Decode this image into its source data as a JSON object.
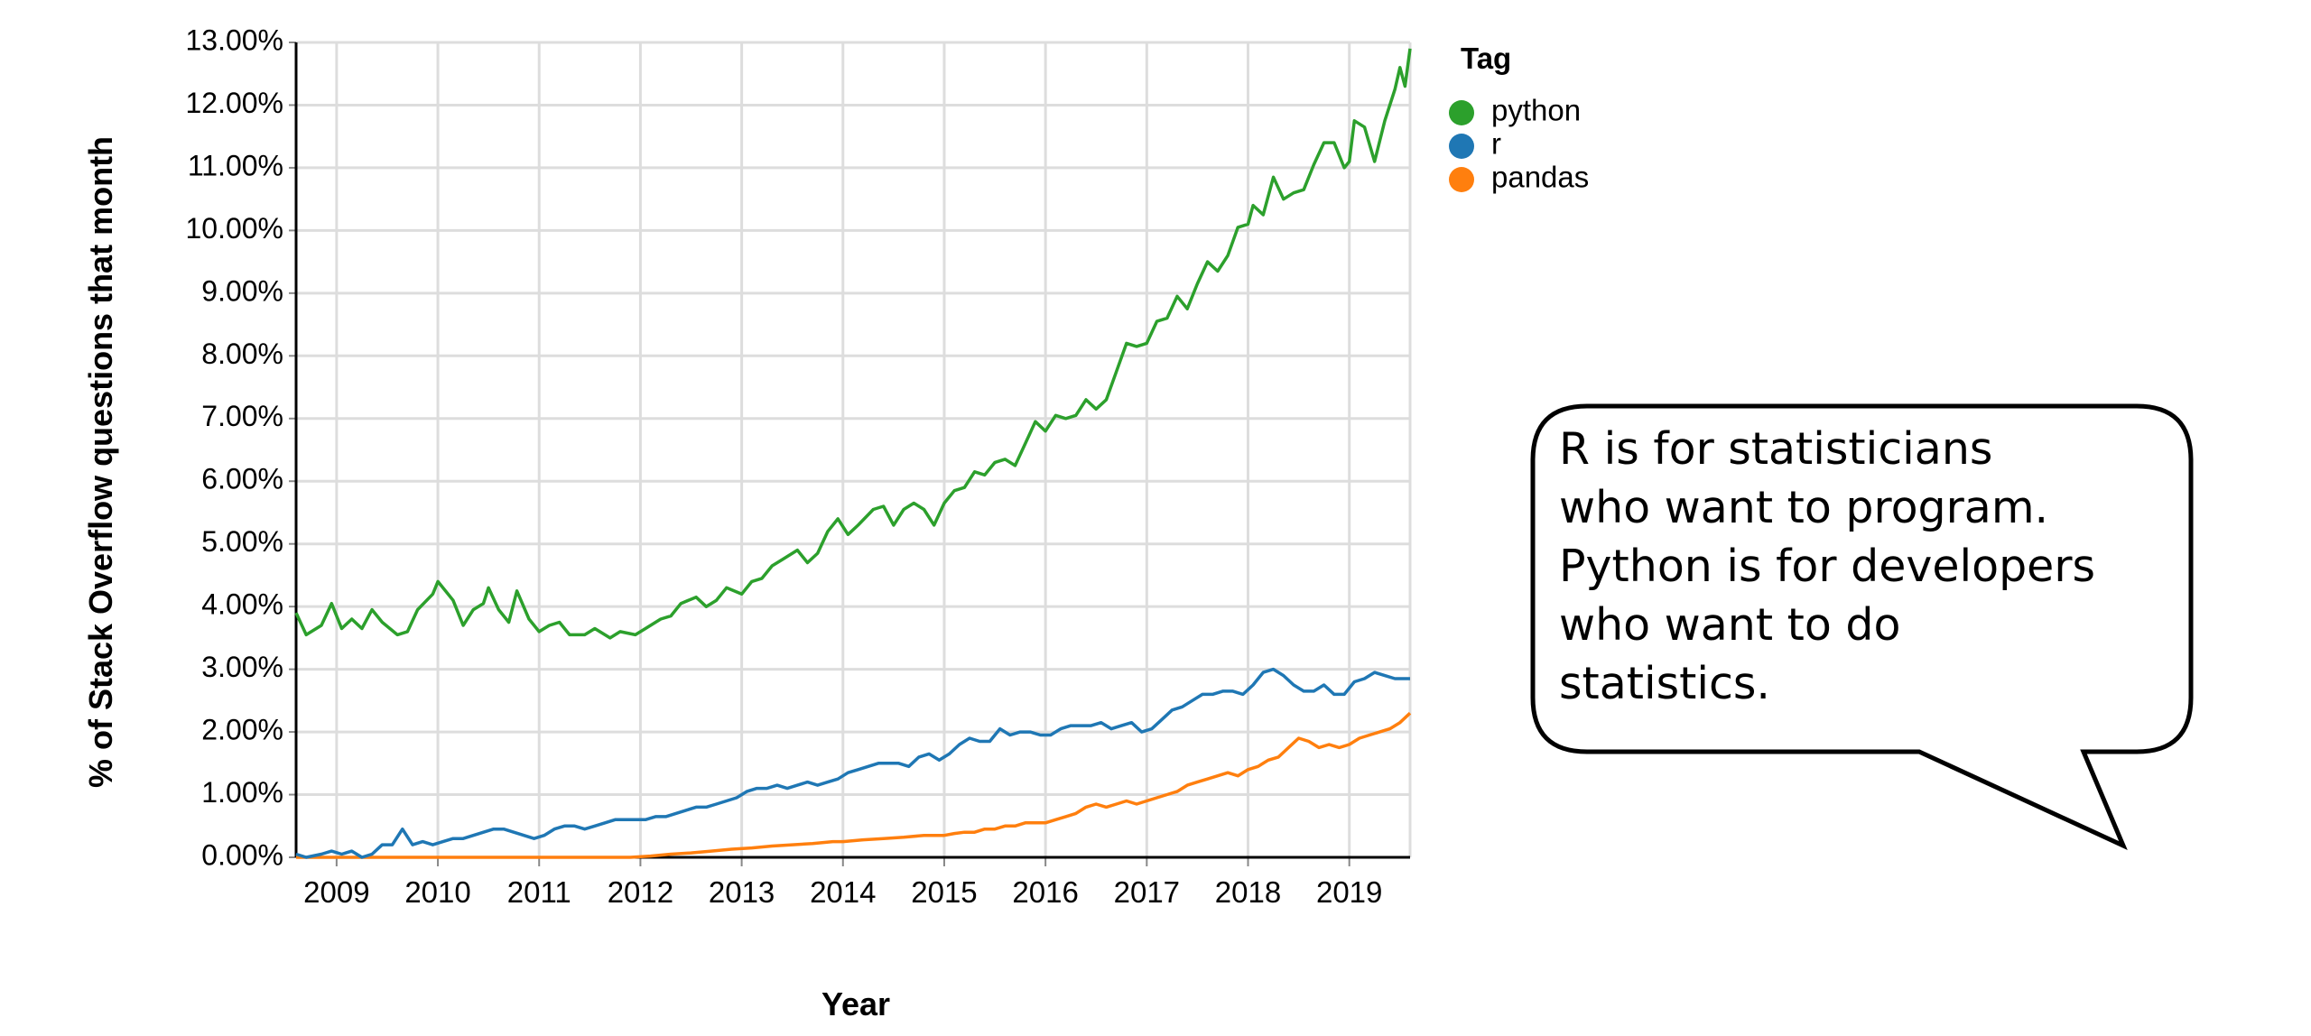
{
  "chart_data": {
    "type": "line",
    "xlabel": "Year",
    "ylabel": "% of Stack Overflow questions that month",
    "ylim": [
      0,
      13
    ],
    "xlim": [
      2008.6,
      2019.6
    ],
    "y_ticks": [
      "0.00%",
      "1.00%",
      "2.00%",
      "3.00%",
      "4.00%",
      "5.00%",
      "6.00%",
      "7.00%",
      "8.00%",
      "9.00%",
      "10.00%",
      "11.00%",
      "12.00%",
      "13.00%"
    ],
    "x_ticks": [
      "2009",
      "2010",
      "2011",
      "2012",
      "2013",
      "2014",
      "2015",
      "2016",
      "2017",
      "2018",
      "2019"
    ],
    "grid": true,
    "legend": {
      "title": "Tag",
      "position": "top-right"
    },
    "series": [
      {
        "name": "python",
        "color": "#2ca02c",
        "points": [
          [
            2008.6,
            3.9
          ],
          [
            2008.7,
            3.55
          ],
          [
            2008.85,
            3.7
          ],
          [
            2008.95,
            4.05
          ],
          [
            2009.05,
            3.65
          ],
          [
            2009.15,
            3.8
          ],
          [
            2009.25,
            3.65
          ],
          [
            2009.35,
            3.95
          ],
          [
            2009.45,
            3.75
          ],
          [
            2009.6,
            3.55
          ],
          [
            2009.7,
            3.6
          ],
          [
            2009.8,
            3.95
          ],
          [
            2009.95,
            4.2
          ],
          [
            2010.0,
            4.4
          ],
          [
            2010.15,
            4.1
          ],
          [
            2010.25,
            3.7
          ],
          [
            2010.35,
            3.95
          ],
          [
            2010.45,
            4.05
          ],
          [
            2010.5,
            4.3
          ],
          [
            2010.6,
            3.95
          ],
          [
            2010.7,
            3.75
          ],
          [
            2010.78,
            4.25
          ],
          [
            2010.9,
            3.8
          ],
          [
            2011.0,
            3.6
          ],
          [
            2011.1,
            3.7
          ],
          [
            2011.2,
            3.75
          ],
          [
            2011.3,
            3.55
          ],
          [
            2011.45,
            3.55
          ],
          [
            2011.55,
            3.65
          ],
          [
            2011.7,
            3.5
          ],
          [
            2011.8,
            3.6
          ],
          [
            2011.95,
            3.55
          ],
          [
            2012.05,
            3.65
          ],
          [
            2012.2,
            3.8
          ],
          [
            2012.3,
            3.85
          ],
          [
            2012.4,
            4.05
          ],
          [
            2012.55,
            4.15
          ],
          [
            2012.65,
            4.0
          ],
          [
            2012.75,
            4.1
          ],
          [
            2012.85,
            4.3
          ],
          [
            2013.0,
            4.2
          ],
          [
            2013.1,
            4.4
          ],
          [
            2013.2,
            4.45
          ],
          [
            2013.3,
            4.65
          ],
          [
            2013.4,
            4.75
          ],
          [
            2013.55,
            4.9
          ],
          [
            2013.65,
            4.7
          ],
          [
            2013.75,
            4.85
          ],
          [
            2013.85,
            5.2
          ],
          [
            2013.95,
            5.4
          ],
          [
            2014.05,
            5.15
          ],
          [
            2014.15,
            5.3
          ],
          [
            2014.3,
            5.55
          ],
          [
            2014.4,
            5.6
          ],
          [
            2014.5,
            5.3
          ],
          [
            2014.6,
            5.55
          ],
          [
            2014.7,
            5.65
          ],
          [
            2014.8,
            5.55
          ],
          [
            2014.9,
            5.3
          ],
          [
            2015.0,
            5.65
          ],
          [
            2015.1,
            5.85
          ],
          [
            2015.2,
            5.9
          ],
          [
            2015.3,
            6.15
          ],
          [
            2015.4,
            6.1
          ],
          [
            2015.5,
            6.3
          ],
          [
            2015.6,
            6.35
          ],
          [
            2015.7,
            6.25
          ],
          [
            2015.8,
            6.6
          ],
          [
            2015.9,
            6.95
          ],
          [
            2016.0,
            6.8
          ],
          [
            2016.1,
            7.05
          ],
          [
            2016.2,
            7.0
          ],
          [
            2016.3,
            7.05
          ],
          [
            2016.4,
            7.3
          ],
          [
            2016.5,
            7.15
          ],
          [
            2016.6,
            7.3
          ],
          [
            2016.7,
            7.75
          ],
          [
            2016.8,
            8.2
          ],
          [
            2016.9,
            8.15
          ],
          [
            2017.0,
            8.2
          ],
          [
            2017.1,
            8.55
          ],
          [
            2017.2,
            8.6
          ],
          [
            2017.3,
            8.95
          ],
          [
            2017.4,
            8.75
          ],
          [
            2017.5,
            9.15
          ],
          [
            2017.6,
            9.5
          ],
          [
            2017.7,
            9.35
          ],
          [
            2017.8,
            9.6
          ],
          [
            2017.9,
            10.05
          ],
          [
            2018.0,
            10.1
          ],
          [
            2018.05,
            10.4
          ],
          [
            2018.15,
            10.25
          ],
          [
            2018.25,
            10.85
          ],
          [
            2018.35,
            10.5
          ],
          [
            2018.45,
            10.6
          ],
          [
            2018.55,
            10.65
          ],
          [
            2018.65,
            11.05
          ],
          [
            2018.75,
            11.4
          ],
          [
            2018.85,
            11.4
          ],
          [
            2018.95,
            11.0
          ],
          [
            2019.0,
            11.1
          ],
          [
            2019.05,
            11.75
          ],
          [
            2019.15,
            11.65
          ],
          [
            2019.25,
            11.1
          ],
          [
            2019.35,
            11.75
          ],
          [
            2019.45,
            12.25
          ],
          [
            2019.5,
            12.6
          ],
          [
            2019.55,
            12.3
          ],
          [
            2019.6,
            12.9
          ]
        ]
      },
      {
        "name": "r",
        "color": "#1f77b4",
        "points": [
          [
            2008.6,
            0.05
          ],
          [
            2008.7,
            0.0
          ],
          [
            2008.85,
            0.05
          ],
          [
            2008.95,
            0.1
          ],
          [
            2009.05,
            0.05
          ],
          [
            2009.15,
            0.1
          ],
          [
            2009.25,
            0.0
          ],
          [
            2009.35,
            0.05
          ],
          [
            2009.45,
            0.2
          ],
          [
            2009.55,
            0.2
          ],
          [
            2009.65,
            0.45
          ],
          [
            2009.75,
            0.2
          ],
          [
            2009.85,
            0.25
          ],
          [
            2009.95,
            0.2
          ],
          [
            2010.05,
            0.25
          ],
          [
            2010.15,
            0.3
          ],
          [
            2010.25,
            0.3
          ],
          [
            2010.35,
            0.35
          ],
          [
            2010.45,
            0.4
          ],
          [
            2010.55,
            0.45
          ],
          [
            2010.65,
            0.45
          ],
          [
            2010.75,
            0.4
          ],
          [
            2010.85,
            0.35
          ],
          [
            2010.95,
            0.3
          ],
          [
            2011.05,
            0.35
          ],
          [
            2011.15,
            0.45
          ],
          [
            2011.25,
            0.5
          ],
          [
            2011.35,
            0.5
          ],
          [
            2011.45,
            0.45
          ],
          [
            2011.55,
            0.5
          ],
          [
            2011.65,
            0.55
          ],
          [
            2011.75,
            0.6
          ],
          [
            2011.85,
            0.6
          ],
          [
            2011.95,
            0.6
          ],
          [
            2012.05,
            0.6
          ],
          [
            2012.15,
            0.65
          ],
          [
            2012.25,
            0.65
          ],
          [
            2012.35,
            0.7
          ],
          [
            2012.45,
            0.75
          ],
          [
            2012.55,
            0.8
          ],
          [
            2012.65,
            0.8
          ],
          [
            2012.75,
            0.85
          ],
          [
            2012.85,
            0.9
          ],
          [
            2012.95,
            0.95
          ],
          [
            2013.05,
            1.05
          ],
          [
            2013.15,
            1.1
          ],
          [
            2013.25,
            1.1
          ],
          [
            2013.35,
            1.15
          ],
          [
            2013.45,
            1.1
          ],
          [
            2013.55,
            1.15
          ],
          [
            2013.65,
            1.2
          ],
          [
            2013.75,
            1.15
          ],
          [
            2013.85,
            1.2
          ],
          [
            2013.95,
            1.25
          ],
          [
            2014.05,
            1.35
          ],
          [
            2014.15,
            1.4
          ],
          [
            2014.25,
            1.45
          ],
          [
            2014.35,
            1.5
          ],
          [
            2014.45,
            1.5
          ],
          [
            2014.55,
            1.5
          ],
          [
            2014.65,
            1.45
          ],
          [
            2014.75,
            1.6
          ],
          [
            2014.85,
            1.65
          ],
          [
            2014.95,
            1.55
          ],
          [
            2015.05,
            1.65
          ],
          [
            2015.15,
            1.8
          ],
          [
            2015.25,
            1.9
          ],
          [
            2015.35,
            1.85
          ],
          [
            2015.45,
            1.85
          ],
          [
            2015.55,
            2.05
          ],
          [
            2015.65,
            1.95
          ],
          [
            2015.75,
            2.0
          ],
          [
            2015.85,
            2.0
          ],
          [
            2015.95,
            1.95
          ],
          [
            2016.05,
            1.95
          ],
          [
            2016.15,
            2.05
          ],
          [
            2016.25,
            2.1
          ],
          [
            2016.35,
            2.1
          ],
          [
            2016.45,
            2.1
          ],
          [
            2016.55,
            2.15
          ],
          [
            2016.65,
            2.05
          ],
          [
            2016.75,
            2.1
          ],
          [
            2016.85,
            2.15
          ],
          [
            2016.95,
            2.0
          ],
          [
            2017.05,
            2.05
          ],
          [
            2017.15,
            2.2
          ],
          [
            2017.25,
            2.35
          ],
          [
            2017.35,
            2.4
          ],
          [
            2017.45,
            2.5
          ],
          [
            2017.55,
            2.6
          ],
          [
            2017.65,
            2.6
          ],
          [
            2017.75,
            2.65
          ],
          [
            2017.85,
            2.65
          ],
          [
            2017.95,
            2.6
          ],
          [
            2018.05,
            2.75
          ],
          [
            2018.15,
            2.95
          ],
          [
            2018.25,
            3.0
          ],
          [
            2018.35,
            2.9
          ],
          [
            2018.45,
            2.75
          ],
          [
            2018.55,
            2.65
          ],
          [
            2018.65,
            2.65
          ],
          [
            2018.75,
            2.75
          ],
          [
            2018.85,
            2.6
          ],
          [
            2018.95,
            2.6
          ],
          [
            2019.05,
            2.8
          ],
          [
            2019.15,
            2.85
          ],
          [
            2019.25,
            2.95
          ],
          [
            2019.35,
            2.9
          ],
          [
            2019.45,
            2.85
          ],
          [
            2019.55,
            2.85
          ],
          [
            2019.6,
            2.85
          ]
        ]
      },
      {
        "name": "pandas",
        "color": "#ff7f0e",
        "points": [
          [
            2008.6,
            0.0
          ],
          [
            2009.0,
            0.0
          ],
          [
            2010.0,
            0.0
          ],
          [
            2011.0,
            0.0
          ],
          [
            2011.9,
            0.0
          ],
          [
            2012.1,
            0.02
          ],
          [
            2012.3,
            0.05
          ],
          [
            2012.5,
            0.07
          ],
          [
            2012.7,
            0.1
          ],
          [
            2012.9,
            0.13
          ],
          [
            2013.1,
            0.15
          ],
          [
            2013.3,
            0.18
          ],
          [
            2013.5,
            0.2
          ],
          [
            2013.7,
            0.22
          ],
          [
            2013.9,
            0.25
          ],
          [
            2014.0,
            0.25
          ],
          [
            2014.2,
            0.28
          ],
          [
            2014.4,
            0.3
          ],
          [
            2014.6,
            0.32
          ],
          [
            2014.8,
            0.35
          ],
          [
            2015.0,
            0.35
          ],
          [
            2015.1,
            0.38
          ],
          [
            2015.2,
            0.4
          ],
          [
            2015.3,
            0.4
          ],
          [
            2015.4,
            0.45
          ],
          [
            2015.5,
            0.45
          ],
          [
            2015.6,
            0.5
          ],
          [
            2015.7,
            0.5
          ],
          [
            2015.8,
            0.55
          ],
          [
            2015.9,
            0.55
          ],
          [
            2016.0,
            0.55
          ],
          [
            2016.1,
            0.6
          ],
          [
            2016.2,
            0.65
          ],
          [
            2016.3,
            0.7
          ],
          [
            2016.4,
            0.8
          ],
          [
            2016.5,
            0.85
          ],
          [
            2016.6,
            0.8
          ],
          [
            2016.7,
            0.85
          ],
          [
            2016.8,
            0.9
          ],
          [
            2016.9,
            0.85
          ],
          [
            2017.0,
            0.9
          ],
          [
            2017.1,
            0.95
          ],
          [
            2017.2,
            1.0
          ],
          [
            2017.3,
            1.05
          ],
          [
            2017.4,
            1.15
          ],
          [
            2017.5,
            1.2
          ],
          [
            2017.6,
            1.25
          ],
          [
            2017.7,
            1.3
          ],
          [
            2017.8,
            1.35
          ],
          [
            2017.9,
            1.3
          ],
          [
            2018.0,
            1.4
          ],
          [
            2018.1,
            1.45
          ],
          [
            2018.2,
            1.55
          ],
          [
            2018.3,
            1.6
          ],
          [
            2018.4,
            1.75
          ],
          [
            2018.5,
            1.9
          ],
          [
            2018.6,
            1.85
          ],
          [
            2018.7,
            1.75
          ],
          [
            2018.8,
            1.8
          ],
          [
            2018.9,
            1.75
          ],
          [
            2019.0,
            1.8
          ],
          [
            2019.1,
            1.9
          ],
          [
            2019.2,
            1.95
          ],
          [
            2019.3,
            2.0
          ],
          [
            2019.4,
            2.05
          ],
          [
            2019.5,
            2.15
          ],
          [
            2019.6,
            2.3
          ]
        ]
      }
    ]
  },
  "callout": {
    "text": "R is for statisticians\nwho want to program.\nPython is for developers\nwho want to do\nstatistics."
  }
}
